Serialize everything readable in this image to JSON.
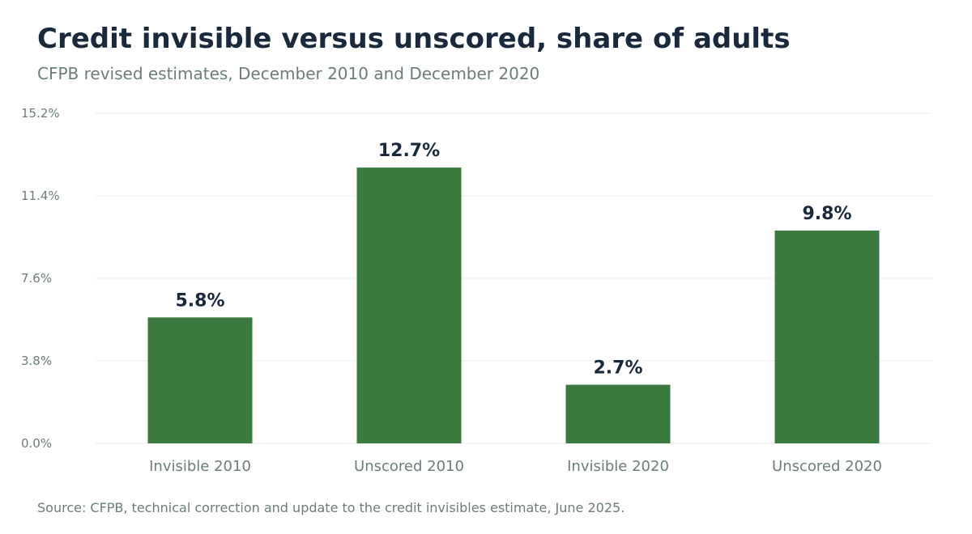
{
  "chart_data": {
    "type": "bar",
    "title": "Credit invisible versus unscored, share of adults",
    "subtitle": "CFPB revised estimates, December 2010 and December 2020",
    "source": "Source: CFPB, technical correction and update to the credit invisibles estimate, June 2025.",
    "categories": [
      "Invisible 2010",
      "Unscored 2010",
      "Invisible 2020",
      "Unscored 2020"
    ],
    "values": [
      5.8,
      12.7,
      2.7,
      9.8
    ],
    "value_labels": [
      "5.8%",
      "12.7%",
      "2.7%",
      "9.8%"
    ],
    "yticks": [
      0.0,
      3.8,
      7.6,
      11.4,
      15.2
    ],
    "ytick_labels": [
      "0.0%",
      "3.8%",
      "7.6%",
      "11.4%",
      "15.2%"
    ],
    "ylim": [
      0,
      15.2
    ],
    "xlabel": "",
    "ylabel": "",
    "grid": true,
    "bar_color": "#3b7a3f"
  }
}
